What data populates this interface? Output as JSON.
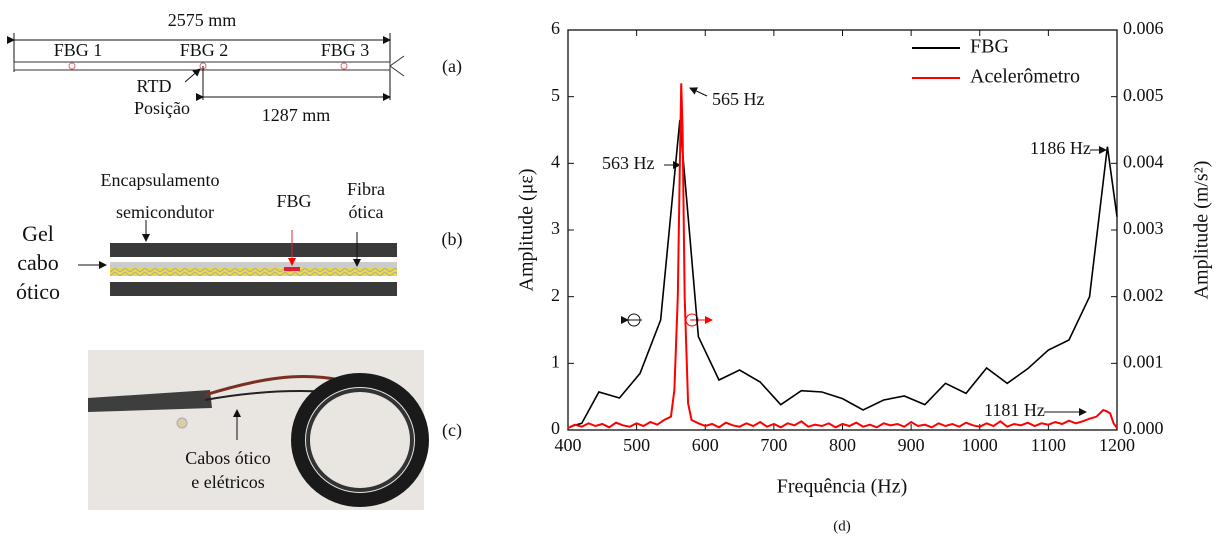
{
  "panels": {
    "a": {
      "length_total": "2575 mm",
      "fbg1": "FBG 1",
      "fbg2": "FBG 2",
      "fbg3": "FBG 3",
      "rtd": "RTD",
      "position": "Posição",
      "length_half": "1287 mm",
      "label": "(a)"
    },
    "b": {
      "encapsulation_1": "Encapsulamento",
      "encapsulation_2": "semicondutor",
      "fbg": "FBG",
      "fiber_1": "Fibra",
      "fiber_2": "ótica",
      "gel_1": "Gel",
      "gel_2": "cabo",
      "gel_3": "ótico",
      "label": "(b)"
    },
    "c": {
      "cables_1": "Cabos ótico",
      "cables_2": "e elétricos",
      "label": "(c)"
    },
    "d": {
      "label": "(d)"
    }
  },
  "chart_data": {
    "type": "line",
    "x_label": "Frequência (Hz)",
    "y_label": "Amplitude (με)",
    "y2_label": "Amplitude (m/s²)",
    "xlim": [
      400,
      1200
    ],
    "xticks": [
      400,
      500,
      600,
      700,
      800,
      900,
      1000,
      1100,
      1200
    ],
    "ylim": [
      0,
      6
    ],
    "yticks": [
      0,
      1,
      2,
      3,
      4,
      5,
      6
    ],
    "y2lim": [
      0,
      0.006
    ],
    "y2ticks": [
      {
        "value": 0,
        "label": "0.000"
      },
      0.001,
      0.002,
      0.003,
      0.004,
      0.005,
      0.006
    ],
    "legend": "upper right",
    "annotations": [
      "565 Hz",
      "563 Hz",
      "1186 Hz",
      "1181 Hz"
    ],
    "series": [
      {
        "name": "FBG",
        "color": "#000000",
        "x": [
          403,
          420,
          445,
          475,
          505,
          535,
          563,
          590,
          620,
          650,
          680,
          710,
          740,
          770,
          800,
          830,
          860,
          890,
          920,
          950,
          980,
          1010,
          1040,
          1070,
          1100,
          1130,
          1160,
          1186,
          1200
        ],
        "values": [
          0.05,
          0.1,
          0.57,
          0.48,
          0.85,
          1.65,
          4.65,
          1.4,
          0.75,
          0.9,
          0.72,
          0.38,
          0.59,
          0.57,
          0.47,
          0.3,
          0.45,
          0.51,
          0.38,
          0.7,
          0.55,
          0.93,
          0.7,
          0.92,
          1.2,
          1.35,
          2.0,
          4.25,
          3.2
        ]
      },
      {
        "name": "Acelerômetro",
        "color": "#ff0000",
        "axis": "y2",
        "x": [
          400,
          410,
          420,
          430,
          440,
          450,
          460,
          470,
          480,
          490,
          500,
          510,
          520,
          530,
          540,
          550,
          555,
          560,
          563,
          565,
          567,
          570,
          575,
          580,
          590,
          600,
          610,
          620,
          630,
          640,
          650,
          660,
          670,
          680,
          690,
          700,
          710,
          720,
          730,
          740,
          750,
          760,
          770,
          780,
          790,
          800,
          810,
          820,
          830,
          840,
          850,
          860,
          870,
          880,
          890,
          900,
          910,
          920,
          930,
          940,
          950,
          960,
          970,
          980,
          990,
          1000,
          1010,
          1020,
          1030,
          1040,
          1050,
          1060,
          1070,
          1080,
          1090,
          1100,
          1110,
          1120,
          1130,
          1140,
          1150,
          1160,
          1170,
          1180,
          1185,
          1190,
          1195,
          1200
        ],
        "values": [
          3e-05,
          8e-05,
          5e-05,
          0.0001,
          6e-05,
          9e-05,
          4e-05,
          0.00011,
          7e-05,
          5e-05,
          0.0001,
          6e-05,
          0.00012,
          8e-05,
          0.00015,
          0.0002,
          0.0006,
          0.002,
          0.004,
          0.0052,
          0.0045,
          0.002,
          0.0004,
          0.00015,
          0.0001,
          6e-05,
          9e-05,
          4e-05,
          0.00011,
          7e-05,
          5e-05,
          0.0001,
          6e-05,
          0.00012,
          5e-05,
          9e-05,
          4e-05,
          0.0001,
          7e-05,
          0.00013,
          5e-05,
          8e-05,
          6e-05,
          0.0001,
          4e-05,
          9e-05,
          6e-05,
          0.00011,
          5e-05,
          8e-05,
          4e-05,
          0.0001,
          7e-05,
          9e-05,
          5e-05,
          0.00012,
          6e-05,
          8e-05,
          4e-05,
          0.0001,
          6e-05,
          9e-05,
          5e-05,
          0.00011,
          7e-05,
          5e-05,
          0.0001,
          6e-05,
          0.00013,
          5e-05,
          9e-05,
          7e-05,
          0.00011,
          6e-05,
          0.0001,
          8e-05,
          0.00012,
          9e-05,
          0.00014,
          0.0001,
          0.00013,
          0.00017,
          0.0002,
          0.0003,
          0.00028,
          0.00025,
          0.0001,
          3e-05
        ]
      }
    ]
  }
}
